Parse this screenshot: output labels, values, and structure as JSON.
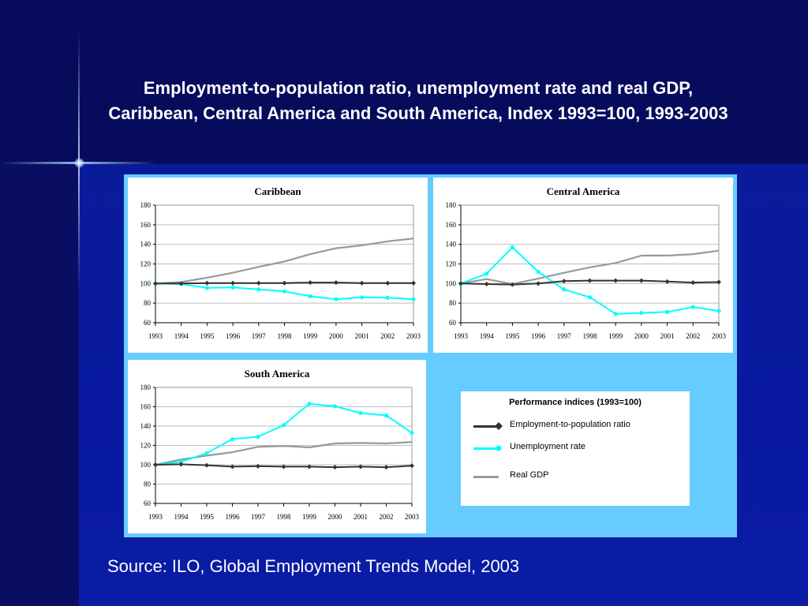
{
  "title": {
    "line1": "Employment-to-population ratio, unemployment rate and real GDP,",
    "line2": "Caribbean, Central America and South America, Index 1993=100, 1993-2003"
  },
  "colors": {
    "employment": "#333333",
    "unemployment": "#00ffff",
    "gdp": "#999999",
    "panel_bg": "#66ccff"
  },
  "legend": {
    "title": "Performance indices (1993=100)",
    "items": [
      {
        "label": "Employment-to-population ratio",
        "color": "#333333",
        "marker": "diamond"
      },
      {
        "label": "Unemployment rate",
        "color": "#00ffff",
        "marker": "circle"
      },
      {
        "label": "Real GDP",
        "color": "#999999",
        "marker": "none"
      }
    ]
  },
  "chart_data": [
    {
      "type": "line",
      "title": "Caribbean",
      "x": [
        "1993",
        "1994",
        "1995",
        "1996",
        "1997",
        "1998",
        "1999",
        "2000",
        "2001",
        "2002",
        "2003"
      ],
      "ylim": [
        60,
        180
      ],
      "yticks": [
        60,
        80,
        100,
        120,
        140,
        160,
        180
      ],
      "grid": true,
      "series": [
        {
          "name": "Employment-to-population ratio",
          "values": [
            100,
            100,
            100.5,
            100.5,
            100.5,
            100.5,
            101,
            101,
            100.5,
            100.5,
            100.5
          ]
        },
        {
          "name": "Unemployment rate",
          "values": [
            100,
            99.5,
            95.5,
            96,
            94,
            92,
            87,
            84,
            86,
            85.5,
            84
          ]
        },
        {
          "name": "Real GDP",
          "values": [
            100,
            101.5,
            106,
            111,
            117,
            122.5,
            130,
            136,
            139,
            143,
            146
          ]
        }
      ]
    },
    {
      "type": "line",
      "title": "Central America",
      "x": [
        "1993",
        "1994",
        "1995",
        "1996",
        "1997",
        "1998",
        "1999",
        "2000",
        "2001",
        "2002",
        "2003"
      ],
      "ylim": [
        60,
        180
      ],
      "yticks": [
        60,
        80,
        100,
        120,
        140,
        160,
        180
      ],
      "grid": true,
      "series": [
        {
          "name": "Employment-to-population ratio",
          "values": [
            100,
            99.5,
            99,
            100,
            102.5,
            103,
            103,
            103,
            102,
            101,
            101.5
          ]
        },
        {
          "name": "Unemployment rate",
          "values": [
            100,
            110,
            137,
            112,
            94,
            86,
            69,
            70,
            71,
            76,
            72
          ]
        },
        {
          "name": "Real GDP",
          "values": [
            100,
            104.5,
            99.5,
            105,
            111,
            116.5,
            121,
            128.5,
            128.5,
            130,
            133.5
          ]
        }
      ]
    },
    {
      "type": "line",
      "title": "South America",
      "x": [
        "1993",
        "1994",
        "1995",
        "1996",
        "1997",
        "1998",
        "1999",
        "2000",
        "2001",
        "2002",
        "2003"
      ],
      "ylim": [
        60,
        180
      ],
      "yticks": [
        60,
        80,
        100,
        120,
        140,
        160,
        180
      ],
      "grid": true,
      "series": [
        {
          "name": "Employment-to-population ratio",
          "values": [
            100,
            100.5,
            99.5,
            98,
            98.5,
            98,
            98,
            97.5,
            98,
            97.5,
            99
          ]
        },
        {
          "name": "Unemployment rate",
          "values": [
            100,
            103,
            112,
            126.5,
            129,
            141,
            163,
            160.5,
            153.5,
            151,
            133
          ]
        },
        {
          "name": "Real GDP",
          "values": [
            100,
            105.5,
            109.5,
            113,
            118.5,
            119.5,
            118,
            122,
            122.5,
            122,
            123.5
          ]
        }
      ]
    }
  ],
  "source": "Source: ILO, Global Employment Trends Model, 2003"
}
